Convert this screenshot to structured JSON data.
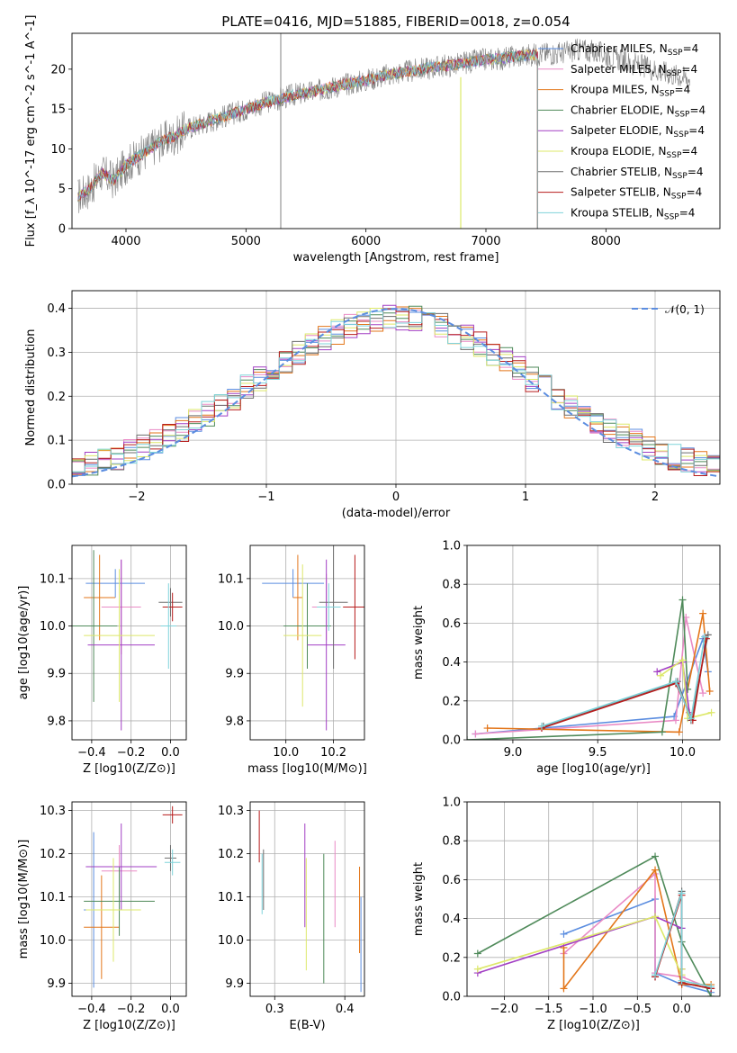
{
  "colors": {
    "Chabrier MILES": "#5b8de0",
    "Salpeter MILES": "#e98ac5",
    "Kroupa MILES": "#e3761a",
    "Chabrier ELODIE": "#4f8a5a",
    "Salpeter ELODIE": "#a23fc4",
    "Kroupa ELODIE": "#dde86a",
    "Chabrier STELIB": "#6d6d6d",
    "Salpeter STELIB": "#b71c1c",
    "Kroupa STELIB": "#7fd3da"
  },
  "figure": {
    "title": "PLATE=0416, MJD=51885, FIBERID=0018, z=0.054"
  },
  "chart_data": [
    {
      "panel": "spectrum",
      "type": "line",
      "xlabel": "wavelength [Angstrom, rest frame]",
      "ylabel": "Flux [f_λ 10^-17 erg cm^-2 s^-1 A^-1]",
      "xlim": [
        3550,
        8950
      ],
      "ylim": [
        0,
        24.5
      ],
      "xticks": [
        "4000",
        "5000",
        "6000",
        "7000",
        "8000"
      ],
      "yticks": [
        "0",
        "5",
        "10",
        "15",
        "20"
      ],
      "grid": false,
      "legend_position": "right",
      "legend": [
        {
          "label": "Chabrier MILES, N_SSP=4"
        },
        {
          "label": "Salpeter MILES, N_SSP=4"
        },
        {
          "label": "Kroupa MILES, N_SSP=4"
        },
        {
          "label": "Chabrier ELODIE, N_SSP=4"
        },
        {
          "label": "Salpeter ELODIE, N_SSP=4"
        },
        {
          "label": "Kroupa ELODIE, N_SSP=4"
        },
        {
          "label": "Chabrier STELIB, N_SSP=4"
        },
        {
          "label": "Salpeter STELIB, N_SSP=4"
        },
        {
          "label": "Kroupa STELIB, N_SSP=4"
        }
      ],
      "data_x": [
        3600,
        3700,
        3800,
        3900,
        4000,
        4100,
        4200,
        4300,
        4400,
        4500,
        4600,
        4700,
        4800,
        4900,
        5000,
        5100,
        5200,
        5300,
        5400,
        5500,
        5600,
        5700,
        5800,
        5900,
        6000,
        6100,
        6200,
        6300,
        6400,
        6500,
        6600,
        6700,
        6800,
        6900,
        7000,
        7100,
        7200,
        7300,
        7400,
        7500,
        7600,
        7700,
        7800,
        7900,
        8000,
        8100,
        8200,
        8300,
        8400,
        8500,
        8600,
        8700
      ],
      "data_y": [
        4,
        5,
        7,
        6,
        8,
        9,
        10,
        11,
        11.5,
        12.5,
        13,
        13.5,
        14,
        14.5,
        15,
        15.5,
        16,
        16.3,
        16.8,
        17,
        17.3,
        17.7,
        18,
        18.3,
        18.6,
        19,
        19.3,
        19.6,
        19.8,
        20.1,
        20.3,
        20.5,
        20.7,
        21,
        21.2,
        21.3,
        21.5,
        21.7,
        21.8,
        22,
        22,
        22.2,
        22.5,
        22.2,
        21.8,
        21.3,
        20.8,
        20.4,
        20,
        19.6,
        19.2,
        18.8
      ],
      "model_end_x": 7430,
      "model_drop_x": 6790
    },
    {
      "panel": "residuals",
      "type": "line",
      "xlabel": "(data-model)/error",
      "ylabel": "Normed distribution",
      "xlim": [
        -2.5,
        2.5
      ],
      "ylim": [
        0,
        0.44
      ],
      "xticks": [
        "−2",
        "−1",
        "0",
        "1",
        "2"
      ],
      "yticks": [
        "0.0",
        "0.1",
        "0.2",
        "0.3",
        "0.4"
      ],
      "grid": true,
      "legend_position": "upper right",
      "legend": [
        {
          "label": "𝒩(0, 1)"
        }
      ],
      "bin_width": 0.1,
      "bin_start": -2.5
    },
    {
      "panel": "age_vs_Z",
      "type": "scatter",
      "xlabel": "Z [log10(Z/Z⊙)]",
      "ylabel": "age [log10(age/yr)]",
      "xlim": [
        -0.5,
        0.08
      ],
      "ylim": [
        9.76,
        10.17
      ],
      "xticks": [
        "−0.4",
        "−0.2",
        "0.0"
      ],
      "yticks": [
        "9.8",
        "9.9",
        "10.0",
        "10.1"
      ],
      "grid": true,
      "points": [
        {
          "model": "Chabrier MILES",
          "x": -0.28,
          "y": 10.09,
          "xerr": 0.15,
          "yerr": 0.03
        },
        {
          "model": "Salpeter MILES",
          "x": -0.25,
          "y": 10.04,
          "xerr": 0.1,
          "yerr": 0.1
        },
        {
          "model": "Kroupa MILES",
          "x": -0.36,
          "y": 10.06,
          "xerr": 0.08,
          "yerr": 0.09
        },
        {
          "model": "Chabrier ELODIE",
          "x": -0.39,
          "y": 10.0,
          "xerr": 0.12,
          "yerr": 0.16
        },
        {
          "model": "Salpeter ELODIE",
          "x": -0.25,
          "y": 9.96,
          "xerr": 0.17,
          "yerr": 0.18
        },
        {
          "model": "Kroupa ELODIE",
          "x": -0.26,
          "y": 9.98,
          "xerr": 0.18,
          "yerr": 0.14
        },
        {
          "model": "Chabrier STELIB",
          "x": 0.0,
          "y": 10.05,
          "xerr": 0.06,
          "yerr": 0.03
        },
        {
          "model": "Salpeter STELIB",
          "x": 0.01,
          "y": 10.04,
          "xerr": 0.05,
          "yerr": 0.03
        },
        {
          "model": "Kroupa STELIB",
          "x": -0.01,
          "y": 10.0,
          "xerr": 0.04,
          "yerr": 0.09
        }
      ]
    },
    {
      "panel": "age_vs_mass",
      "type": "scatter",
      "xlabel": "mass [log10(M/M⊙)]",
      "ylabel": "",
      "xlim": [
        9.85,
        10.33
      ],
      "ylim": [
        9.76,
        10.17
      ],
      "xticks": [
        "10.0",
        "10.2"
      ],
      "yticks": [
        "9.8",
        "9.9",
        "10.0",
        "10.1"
      ],
      "grid": true,
      "points": [
        {
          "model": "Chabrier MILES",
          "x": 10.03,
          "y": 10.09,
          "xerr": 0.13,
          "yerr": 0.03
        },
        {
          "model": "Salpeter MILES",
          "x": 10.17,
          "y": 10.04,
          "xerr": 0.06,
          "yerr": 0.07
        },
        {
          "model": "Kroupa MILES",
          "x": 10.05,
          "y": 10.06,
          "xerr": 0.02,
          "yerr": 0.09
        },
        {
          "model": "Chabrier ELODIE",
          "x": 10.09,
          "y": 10.0,
          "xerr": 0.1,
          "yerr": 0.09
        },
        {
          "model": "Salpeter ELODIE",
          "x": 10.17,
          "y": 9.96,
          "xerr": 0.08,
          "yerr": 0.18
        },
        {
          "model": "Kroupa ELODIE",
          "x": 10.07,
          "y": 9.98,
          "xerr": 0.08,
          "yerr": 0.15
        },
        {
          "model": "Chabrier STELIB",
          "x": 10.2,
          "y": 10.05,
          "xerr": 0.06,
          "yerr": 0.14
        },
        {
          "model": "Salpeter STELIB",
          "x": 10.29,
          "y": 10.04,
          "xerr": 0.05,
          "yerr": 0.11
        },
        {
          "model": "Kroupa STELIB",
          "x": 10.18,
          "y": 10.04,
          "xerr": 0.05,
          "yerr": 0.05
        }
      ]
    },
    {
      "panel": "weight_vs_age",
      "type": "line",
      "xlabel": "age [log10(age/yr)]",
      "ylabel": "mass weight",
      "xlim": [
        8.73,
        10.22
      ],
      "ylim": [
        0,
        1.0
      ],
      "xticks": [
        "9.0",
        "9.5",
        "10.0"
      ],
      "yticks": [
        "0.0",
        "0.2",
        "0.4",
        "0.6",
        "0.8",
        "1.0"
      ],
      "grid": true,
      "series": [
        {
          "model": "Chabrier MILES",
          "x": [
            8.78,
            9.95,
            10.12,
            10.15
          ],
          "y": [
            0.03,
            0.12,
            0.52,
            0.35
          ]
        },
        {
          "model": "Salpeter MILES",
          "x": [
            8.78,
            9.96,
            10.02,
            10.12
          ],
          "y": [
            0.03,
            0.1,
            0.63,
            0.24
          ]
        },
        {
          "model": "Kroupa MILES",
          "x": [
            8.85,
            9.98,
            10.12,
            10.16
          ],
          "y": [
            0.06,
            0.04,
            0.65,
            0.25
          ]
        },
        {
          "model": "Chabrier ELODIE",
          "x": [
            8.73,
            9.88,
            10.0,
            10.03
          ],
          "y": [
            0.0,
            0.04,
            0.72,
            0.26
          ]
        },
        {
          "model": "Salpeter ELODIE",
          "x": [
            9.85,
            10.0,
            10.04
          ],
          "y": [
            0.35,
            0.4,
            0.14
          ]
        },
        {
          "model": "Kroupa ELODIE",
          "x": [
            9.87,
            10.0,
            10.03,
            10.17
          ],
          "y": [
            0.33,
            0.41,
            0.11,
            0.14
          ]
        },
        {
          "model": "Chabrier STELIB",
          "x": [
            9.18,
            9.97,
            10.05,
            10.15
          ],
          "y": [
            0.07,
            0.3,
            0.1,
            0.54
          ]
        },
        {
          "model": "Salpeter STELIB",
          "x": [
            9.17,
            9.96,
            10.06,
            10.14
          ],
          "y": [
            0.06,
            0.29,
            0.1,
            0.52
          ]
        },
        {
          "model": "Kroupa STELIB",
          "x": [
            9.17,
            9.96,
            10.05,
            10.13
          ],
          "y": [
            0.07,
            0.3,
            0.11,
            0.53
          ]
        }
      ]
    },
    {
      "panel": "mass_vs_Z",
      "type": "scatter",
      "xlabel": "Z [log10(Z/Z⊙)]",
      "ylabel": "mass [log10(M/M⊙)]",
      "xlim": [
        -0.5,
        0.08
      ],
      "ylim": [
        9.87,
        10.32
      ],
      "xticks": [
        "−0.4",
        "−0.2",
        "0.0"
      ],
      "yticks": [
        "9.9",
        "10.0",
        "10.1",
        "10.2",
        "10.3"
      ],
      "grid": true,
      "points": [
        {
          "model": "Chabrier MILES",
          "x": -0.39,
          "y": 10.07,
          "xerr": 0.05,
          "yerr": 0.18
        },
        {
          "model": "Salpeter MILES",
          "x": -0.26,
          "y": 10.16,
          "xerr": 0.09,
          "yerr": 0.06
        },
        {
          "model": "Kroupa MILES",
          "x": -0.35,
          "y": 10.03,
          "xerr": 0.09,
          "yerr": 0.12
        },
        {
          "model": "Chabrier ELODIE",
          "x": -0.26,
          "y": 10.09,
          "xerr": 0.18,
          "yerr": 0.08
        },
        {
          "model": "Salpeter ELODIE",
          "x": -0.25,
          "y": 10.17,
          "xerr": 0.18,
          "yerr": 0.1
        },
        {
          "model": "Kroupa ELODIE",
          "x": -0.29,
          "y": 10.07,
          "xerr": 0.14,
          "yerr": 0.12
        },
        {
          "model": "Chabrier STELIB",
          "x": 0.0,
          "y": 10.19,
          "xerr": 0.03,
          "yerr": 0.03
        },
        {
          "model": "Salpeter STELIB",
          "x": 0.01,
          "y": 10.29,
          "xerr": 0.05,
          "yerr": 0.02
        },
        {
          "model": "Kroupa STELIB",
          "x": 0.01,
          "y": 10.18,
          "xerr": 0.04,
          "yerr": 0.03
        }
      ]
    },
    {
      "panel": "mass_vs_EBV",
      "type": "scatter",
      "xlabel": "E(B-V)",
      "ylabel": "",
      "xlim": [
        0.265,
        0.428
      ],
      "ylim": [
        9.87,
        10.32
      ],
      "xticks": [
        "0.3",
        "0.4"
      ],
      "yticks": [
        "9.9",
        "10.0",
        "10.1",
        "10.2",
        "10.3"
      ],
      "grid": true,
      "points": [
        {
          "model": "Chabrier MILES",
          "x": 0.423,
          "y": 9.99,
          "xerr": 0,
          "yerr": 0.11
        },
        {
          "model": "Salpeter MILES",
          "x": 0.386,
          "y": 10.13,
          "xerr": 0,
          "yerr": 0.1
        },
        {
          "model": "Kroupa MILES",
          "x": 0.421,
          "y": 10.07,
          "xerr": 0,
          "yerr": 0.1
        },
        {
          "model": "Chabrier ELODIE",
          "x": 0.37,
          "y": 10.05,
          "xerr": 0,
          "yerr": 0.15
        },
        {
          "model": "Salpeter ELODIE",
          "x": 0.343,
          "y": 10.15,
          "xerr": 0,
          "yerr": 0.12
        },
        {
          "model": "Kroupa ELODIE",
          "x": 0.345,
          "y": 10.06,
          "xerr": 0,
          "yerr": 0.13
        },
        {
          "model": "Chabrier STELIB",
          "x": 0.284,
          "y": 10.14,
          "xerr": 0,
          "yerr": 0.07
        },
        {
          "model": "Salpeter STELIB",
          "x": 0.278,
          "y": 10.24,
          "xerr": 0,
          "yerr": 0.06
        },
        {
          "model": "Kroupa STELIB",
          "x": 0.282,
          "y": 10.13,
          "xerr": 0,
          "yerr": 0.07
        }
      ]
    },
    {
      "panel": "weight_vs_Z",
      "type": "line",
      "xlabel": "Z [log10(Z/Z⊙)]",
      "ylabel": "mass weight",
      "xlim": [
        -2.42,
        0.43
      ],
      "ylim": [
        0,
        1.0
      ],
      "xticks": [
        "−2.0",
        "−1.5",
        "−1.0",
        "−0.5",
        "0.0"
      ],
      "yticks": [
        "0.0",
        "0.2",
        "0.4",
        "0.6",
        "0.8",
        "1.0"
      ],
      "grid": true,
      "series": [
        {
          "model": "Chabrier MILES",
          "x": [
            -1.33,
            -0.3,
            -0.3,
            0.0,
            0.33
          ],
          "y": [
            0.32,
            0.5,
            0.12,
            0.06,
            0.02
          ]
        },
        {
          "model": "Salpeter MILES",
          "x": [
            -1.33,
            -0.3,
            -0.3,
            0.0,
            0.33
          ],
          "y": [
            0.22,
            0.63,
            0.12,
            0.1,
            0.04
          ]
        },
        {
          "model": "Kroupa MILES",
          "x": [
            -1.33,
            -1.33,
            -0.3,
            0.0,
            0.33
          ],
          "y": [
            0.25,
            0.04,
            0.65,
            0.06,
            0.06
          ]
        },
        {
          "model": "Chabrier ELODIE",
          "x": [
            -2.3,
            -0.3,
            0.0,
            0.33
          ],
          "y": [
            0.22,
            0.72,
            0.28,
            0.0
          ]
        },
        {
          "model": "Salpeter ELODIE",
          "x": [
            -2.3,
            -0.3,
            0.0,
            0.0
          ],
          "y": [
            0.12,
            0.41,
            0.35,
            0.14
          ]
        },
        {
          "model": "Kroupa ELODIE",
          "x": [
            -2.3,
            -0.3,
            0.0,
            0.0
          ],
          "y": [
            0.14,
            0.41,
            0.11,
            0.14
          ]
        },
        {
          "model": "Chabrier STELIB",
          "x": [
            -0.3,
            0.0,
            0.0,
            0.33
          ],
          "y": [
            0.1,
            0.54,
            0.07,
            0.04
          ]
        },
        {
          "model": "Salpeter STELIB",
          "x": [
            -0.3,
            0.0,
            0.0,
            0.33
          ],
          "y": [
            0.1,
            0.52,
            0.07,
            0.04
          ]
        },
        {
          "model": "Kroupa STELIB",
          "x": [
            -0.3,
            0.0,
            0.0,
            0.33
          ],
          "y": [
            0.11,
            0.53,
            0.08,
            0.05
          ]
        }
      ]
    }
  ]
}
